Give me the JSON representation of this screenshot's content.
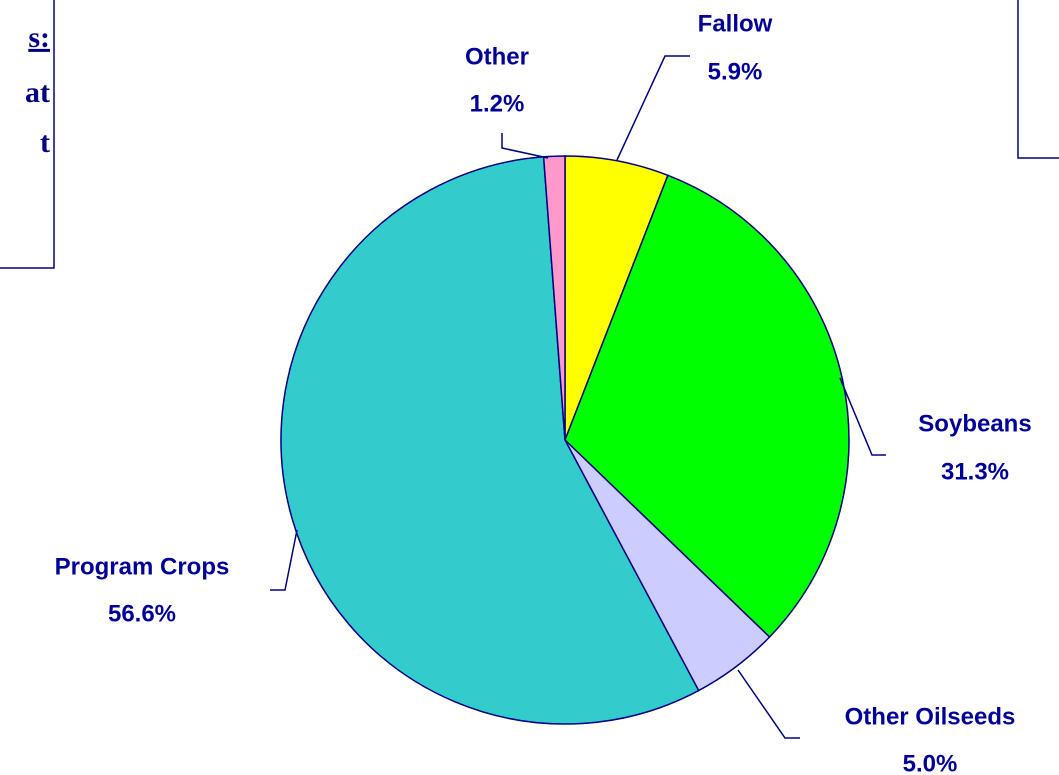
{
  "chart_data": {
    "type": "pie",
    "categories": [
      "Fallow",
      "Soybeans",
      "Other Oilseeds",
      "Program Crops",
      "Other"
    ],
    "values": [
      5.9,
      31.3,
      5.0,
      56.6,
      1.2
    ],
    "value_labels": [
      "5.9%",
      "31.3%",
      "5.0%",
      "56.6%",
      "1.2%"
    ],
    "colors": [
      "#ffff00",
      "#00ff00",
      "#ccccff",
      "#33cccc",
      "#ff99cc"
    ],
    "annotations": [
      "s:",
      "at",
      "t"
    ]
  }
}
